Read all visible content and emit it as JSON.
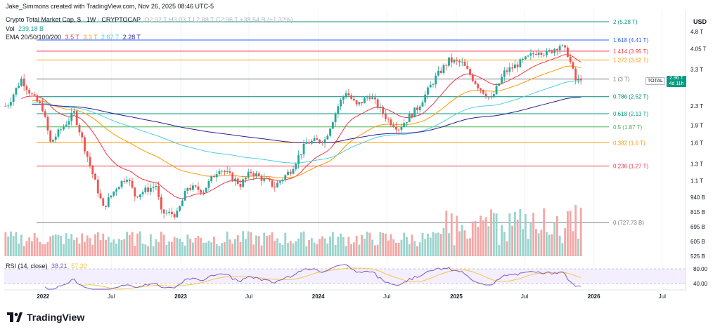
{
  "header": {
    "creator": "Jake_Simmons created with TradingView.com, Nov 26, 2025 08:46 UTC-5",
    "symbol": "Crypto Total Market Cap, $ · 1W · CRYPTOCAP",
    "ohlc": "O2.92 T  H3.03 T  L2.88 T  C2.96 T  +38.54 B (+1.32%)",
    "vol_label": "Vol",
    "vol_value": "239.18 B",
    "ema_label": "EMA 20/50/100/200",
    "ema_values": [
      "3.5 T",
      "3.3 T",
      "2.87 T",
      "2.28 T"
    ],
    "rsi_label": "RSI (14, close)",
    "rsi_values": [
      "38.21",
      "57.30"
    ],
    "currency": "USD"
  },
  "brand": "TradingView",
  "price_badge": {
    "label": "TOTAL",
    "value": "2.96 T",
    "countdown": "4d 11h"
  },
  "colors": {
    "up": "#26a69a",
    "down": "#ef5350",
    "ema20": "#f23645",
    "ema50": "#ff9800",
    "ema100": "#4dd0e1",
    "ema200": "#311b92",
    "rsi": "#7e57c2"
  },
  "chart_data": {
    "type": "candlestick",
    "xaxis_labels": [
      "2022",
      "Jul",
      "2023",
      "Jul",
      "2024",
      "Jul",
      "2025",
      "Jul",
      "2026",
      "Jul"
    ],
    "yaxis_labels": [
      "4.8 T",
      "4.05 T",
      "3.3 T",
      "2.3 T",
      "1.9 T",
      "1.6 T",
      "1.3 T",
      "1.1 T",
      "940 B",
      "815 B",
      "695 B",
      "605 B",
      "525 B"
    ],
    "fib_levels": [
      {
        "label": "2 (5.28 T)",
        "value": 5.28,
        "color": "#089981"
      },
      {
        "label": "1.618 (4.41 T)",
        "value": 4.41,
        "color": "#2962ff"
      },
      {
        "label": "1.414 (3.95 T)",
        "value": 3.95,
        "color": "#f23645"
      },
      {
        "label": "1.272 (3.62 T)",
        "value": 3.62,
        "color": "#ff9800"
      },
      {
        "label": "1 (3 T)",
        "value": 3.0,
        "color": "#787b86"
      },
      {
        "label": "0.786 (2.52 T)",
        "value": 2.52,
        "color": "#00897b"
      },
      {
        "label": "0.618 (2.13 T)",
        "value": 2.13,
        "color": "#089981"
      },
      {
        "label": "0.5 (1.87 T)",
        "value": 1.87,
        "color": "#4caf50"
      },
      {
        "label": "0.382 (1.6 T)",
        "value": 1.6,
        "color": "#ff9800"
      },
      {
        "label": "0.236 (1.27 T)",
        "value": 1.27,
        "color": "#f23645"
      },
      {
        "label": "0 (727.73 B)",
        "value": 0.72773,
        "color": "#787b86"
      }
    ],
    "rsi_levels": [
      80,
      40
    ],
    "last_price": 2.96,
    "price_path": [
      [
        "2021-10-01",
        2.3
      ],
      [
        "2021-11-08",
        3.0
      ],
      [
        "2021-12-06",
        2.55
      ],
      [
        "2022-01-03",
        2.25
      ],
      [
        "2022-01-24",
        1.6
      ],
      [
        "2022-03-28",
        2.15
      ],
      [
        "2022-05-09",
        1.28
      ],
      [
        "2022-06-13",
        0.84
      ],
      [
        "2022-07-18",
        1.03
      ],
      [
        "2022-08-15",
        1.15
      ],
      [
        "2022-09-05",
        0.95
      ],
      [
        "2022-10-31",
        1.05
      ],
      [
        "2022-11-14",
        0.8
      ],
      [
        "2022-12-26",
        0.79
      ],
      [
        "2023-01-23",
        1.03
      ],
      [
        "2023-03-06",
        1.0
      ],
      [
        "2023-04-17",
        1.25
      ],
      [
        "2023-06-12",
        1.06
      ],
      [
        "2023-07-10",
        1.2
      ],
      [
        "2023-09-11",
        1.04
      ],
      [
        "2023-10-23",
        1.22
      ],
      [
        "2023-12-04",
        1.6
      ],
      [
        "2024-01-22",
        1.65
      ],
      [
        "2024-02-26",
        2.3
      ],
      [
        "2024-03-18",
        2.65
      ],
      [
        "2024-04-15",
        2.3
      ],
      [
        "2024-05-20",
        2.55
      ],
      [
        "2024-07-08",
        2.0
      ],
      [
        "2024-08-05",
        1.85
      ],
      [
        "2024-09-23",
        2.25
      ],
      [
        "2024-11-11",
        3.05
      ],
      [
        "2024-12-16",
        3.6
      ],
      [
        "2025-01-20",
        3.5
      ],
      [
        "2025-03-03",
        2.8
      ],
      [
        "2025-04-07",
        2.45
      ],
      [
        "2025-05-12",
        3.2
      ],
      [
        "2025-07-14",
        3.7
      ],
      [
        "2025-08-11",
        4.0
      ],
      [
        "2025-09-01",
        3.85
      ],
      [
        "2025-10-06",
        4.2
      ],
      [
        "2025-10-27",
        3.85
      ],
      [
        "2025-11-17",
        2.96
      ]
    ]
  }
}
